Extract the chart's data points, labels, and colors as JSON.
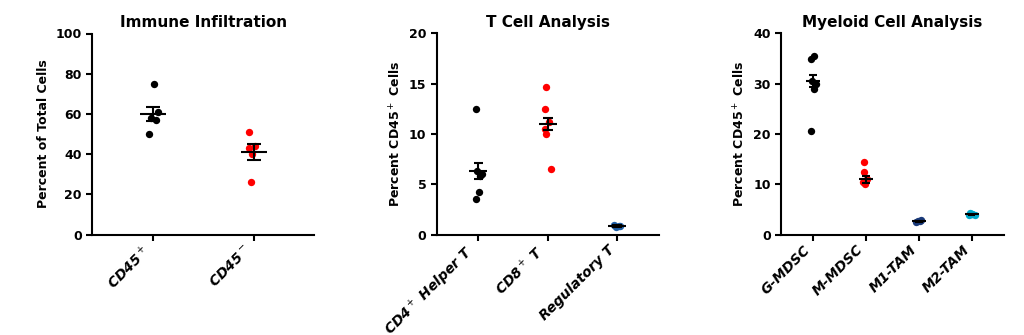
{
  "panel1": {
    "title": "Immune Infiltration",
    "ylabel": "Percent of Total Cells",
    "ylim": [
      0,
      100
    ],
    "yticks": [
      0,
      20,
      40,
      60,
      80,
      100
    ],
    "categories": [
      "CD45$^+$",
      "CD45$^-$"
    ],
    "colors": [
      "black",
      "red"
    ],
    "data": [
      [
        58,
        61,
        57,
        75,
        50
      ],
      [
        43,
        44,
        51,
        26,
        40
      ]
    ],
    "means": [
      60,
      41
    ],
    "sems": [
      3.5,
      4.0
    ]
  },
  "panel2": {
    "title": "T Cell Analysis",
    "ylabel": "Percent CD45$^+$ Cells",
    "ylim": [
      0,
      20
    ],
    "yticks": [
      0,
      5,
      10,
      15,
      20
    ],
    "categories": [
      "CD4$^+$ Helper T",
      "CD8$^+$ T",
      "Regulatory T"
    ],
    "colors": [
      "black",
      "red",
      "#1f5fa6"
    ],
    "data": [
      [
        6.3,
        6.0,
        5.8,
        4.2,
        3.5,
        12.5
      ],
      [
        10.5,
        11.2,
        12.5,
        10.0,
        14.7,
        6.5
      ],
      [
        0.85,
        0.9,
        0.8,
        0.75
      ]
    ],
    "means": [
      6.3,
      11.0,
      0.85
    ],
    "sems": [
      0.8,
      0.6,
      0.06
    ]
  },
  "panel3": {
    "title": "Myeloid Cell Analysis",
    "ylabel": "Percent CD45$^+$ Cells",
    "ylim": [
      0,
      40
    ],
    "yticks": [
      0,
      10,
      20,
      30,
      40
    ],
    "categories": [
      "G-MDSC",
      "M-MDSC",
      "M1-TAM",
      "M2-TAM"
    ],
    "colors": [
      "black",
      "red",
      "#1a3a7a",
      "#00aacc"
    ],
    "data": [
      [
        30.5,
        30.0,
        29.0,
        35.5,
        35.0,
        20.5
      ],
      [
        10.5,
        11.0,
        12.5,
        14.5,
        10.0
      ],
      [
        2.8,
        2.5,
        2.6,
        2.7
      ],
      [
        3.8,
        4.0,
        4.2,
        3.9,
        4.0,
        4.1
      ]
    ],
    "means": [
      30.5,
      11.0,
      2.65,
      4.0
    ],
    "sems": [
      1.2,
      0.7,
      0.07,
      0.08
    ]
  }
}
